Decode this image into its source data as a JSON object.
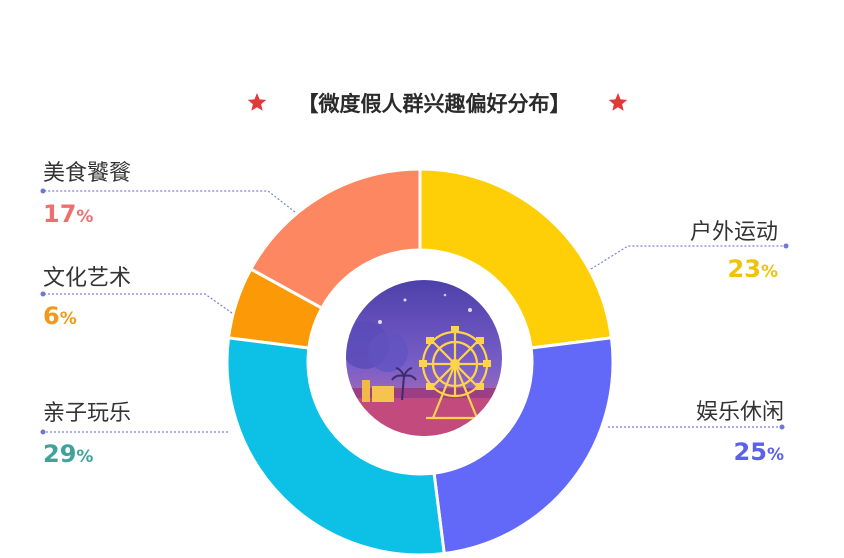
{
  "chart_data": {
    "type": "pie",
    "variant": "donut",
    "title": "【微度假人群兴趣偏好分布】",
    "categories": [
      "户外运动",
      "娱乐休闲",
      "亲子玩乐",
      "文化艺术",
      "美食饕餮"
    ],
    "values": [
      23,
      25,
      29,
      6,
      17
    ],
    "value_labels": [
      "23",
      "25",
      "29",
      "6",
      "17"
    ],
    "unit": "%",
    "colors": [
      "#fecf06",
      "#6268f8",
      "#0cc0e6",
      "#fc9906",
      "#fc8760"
    ],
    "label_colors": [
      "#f0c20a",
      "#5b61e8",
      "#3fa39b",
      "#f09a1c",
      "#ee6f6f"
    ],
    "legend": "none",
    "center_image": "ferris-wheel-night-illustration"
  }
}
